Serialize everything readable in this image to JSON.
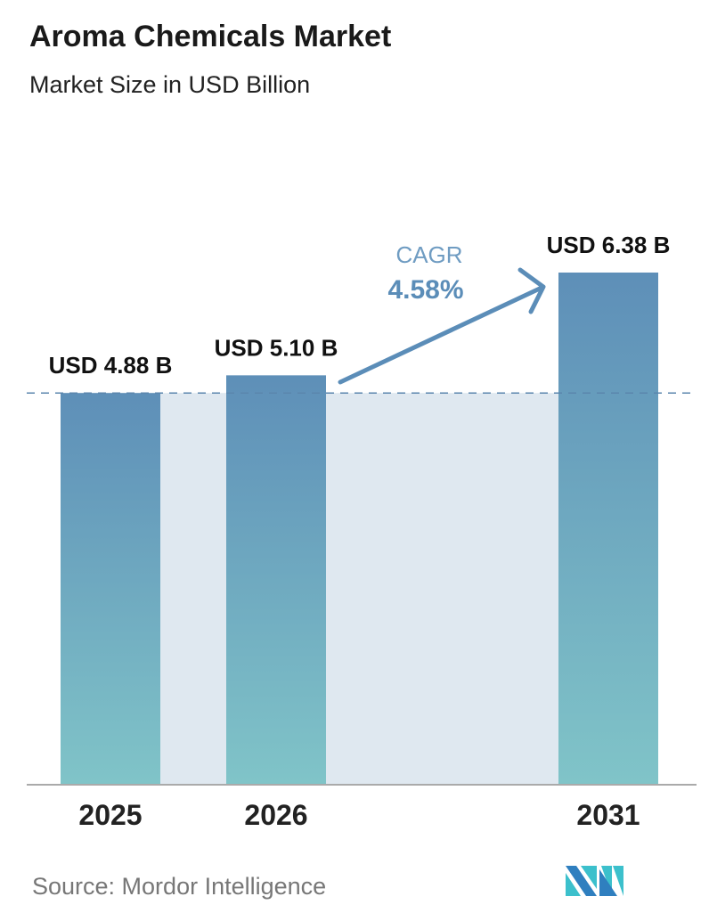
{
  "chart_data": {
    "type": "bar",
    "title": "Aroma Chemicals Market",
    "subtitle": "Market Size in USD Billion",
    "categories": [
      "2025",
      "2026",
      "2031"
    ],
    "values": [
      4.88,
      5.1,
      6.38
    ],
    "data_labels": [
      "USD 4.88 B",
      "USD 5.10 B",
      "USD 6.38 B"
    ],
    "ylim": [
      0,
      6.38
    ],
    "grid": false,
    "reference_line": {
      "value": 4.88,
      "style": "dashed"
    },
    "annotation": {
      "label": "CAGR",
      "value": "4.58%"
    },
    "colors": {
      "bar_top": "#5e8fb8",
      "bar_bottom": "#80c4c8",
      "band": "#dfe8f0",
      "accent": "#5b8db8"
    }
  },
  "source": "Source:  Mordor Intelligence",
  "logo_text": "Mordor Intelligence"
}
